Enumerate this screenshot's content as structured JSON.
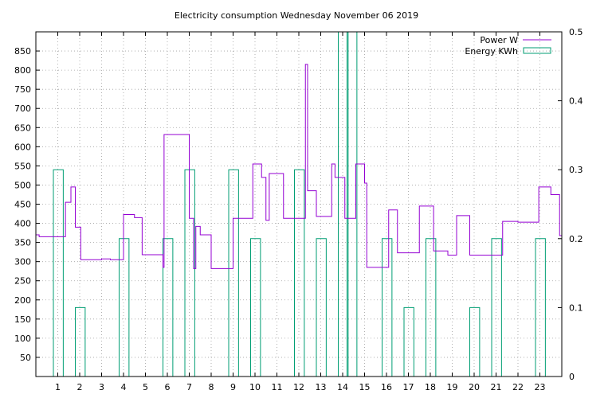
{
  "chart_data": {
    "type": "line",
    "title": "Electricity consumption Wednesday November 06 2019",
    "x_ticks": [
      1,
      2,
      3,
      4,
      5,
      6,
      7,
      8,
      9,
      10,
      11,
      12,
      13,
      14,
      15,
      16,
      17,
      18,
      19,
      20,
      21,
      22,
      23
    ],
    "xlim": [
      0,
      24
    ],
    "ylim": [
      0,
      900
    ],
    "y_ticks": [
      50,
      100,
      150,
      200,
      250,
      300,
      350,
      400,
      450,
      500,
      550,
      600,
      650,
      700,
      750,
      800,
      850
    ],
    "y2lim": [
      0,
      0.5
    ],
    "y2_ticks": [
      0,
      0.1,
      0.2,
      0.3,
      0.4,
      0.5
    ],
    "grid": true,
    "legend_position": "top-right",
    "series": [
      {
        "name": "Power W",
        "color": "#9400d3",
        "type": "step",
        "x": [
          0,
          0.15,
          1.35,
          1.6,
          1.8,
          2.05,
          3.0,
          3.4,
          4.0,
          4.5,
          4.85,
          5.8,
          5.85,
          7.0,
          7.2,
          7.3,
          7.5,
          8.0,
          9.0,
          9.9,
          10.3,
          10.5,
          10.65,
          11.3,
          12.3,
          12.4,
          12.8,
          13.5,
          13.65,
          14.1,
          14.6,
          15.0,
          15.1,
          16.1,
          16.5,
          17.4,
          17.5,
          18.15,
          18.8,
          19.2,
          19.8,
          20.85,
          21.3,
          22.0,
          22.95,
          23.5,
          23.9
        ],
        "y": [
          370,
          365,
          455,
          495,
          390,
          305,
          307,
          305,
          423,
          415,
          318,
          285,
          632,
          413,
          282,
          392,
          370,
          282,
          413,
          555,
          520,
          408,
          530,
          413,
          815,
          485,
          418,
          555,
          520,
          413,
          555,
          505,
          285,
          435,
          323,
          323,
          445,
          328,
          317,
          420,
          317,
          317,
          405,
          403,
          495,
          475,
          368
        ],
        "x_end": 24
      },
      {
        "name": "Energy KWh",
        "color": "#009e73",
        "type": "bar",
        "width": 0.45,
        "x": [
          0.8,
          1.8,
          3.8,
          5.8,
          6.8,
          8.8,
          9.8,
          11.8,
          12.8,
          13.8,
          14.2,
          15.8,
          16.8,
          17.8,
          19.8,
          20.8,
          22.8
        ],
        "y": [
          0.3,
          0.1,
          0.2,
          0.2,
          0.3,
          0.3,
          0.2,
          0.3,
          0.2,
          0.5,
          0.5,
          0.2,
          0.1,
          0.2,
          0.1,
          0.2,
          0.2
        ]
      }
    ]
  }
}
